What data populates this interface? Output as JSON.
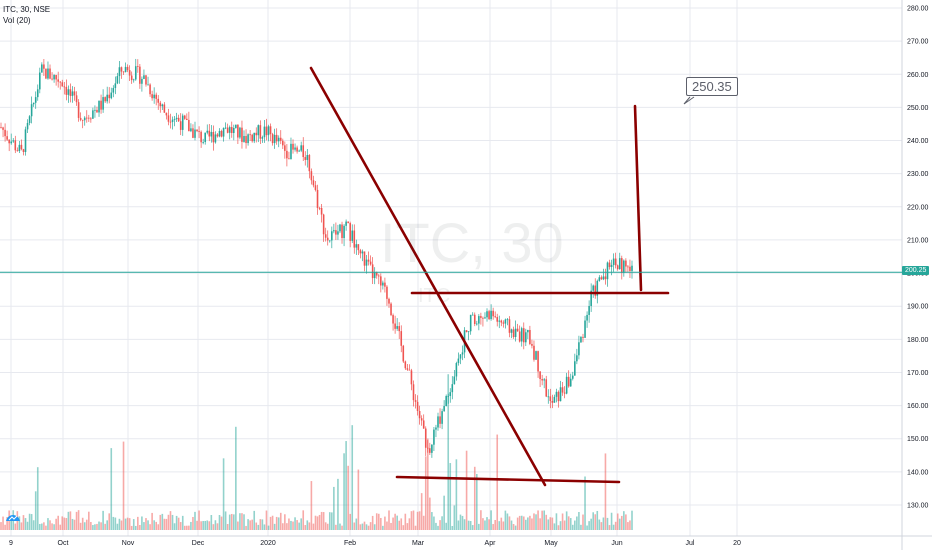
{
  "header": {
    "symbol_line": "ITC, 30, NSE",
    "volume_line": "Vol (20)"
  },
  "watermark": {
    "main": "ITC, 30",
    "sub": "ITC"
  },
  "colors": {
    "up": "#26a69a",
    "down": "#ef5350",
    "trendline": "#8b0000",
    "grid": "#e7e9ef",
    "price_line": "#26a69a",
    "axis_text": "#131722"
  },
  "icons": {
    "logo": "tradingview-logo-icon"
  },
  "chart_data": {
    "type": "candlestick",
    "y_axis": {
      "ticks": [
        130,
        140,
        150,
        160,
        170,
        180,
        190,
        200,
        210,
        220,
        230,
        240,
        250,
        260,
        270,
        280
      ],
      "range": [
        120,
        282
      ],
      "unit_suffix": ".00"
    },
    "x_axis": {
      "labels": [
        "9",
        "Oct",
        "Nov",
        "Dec",
        "2020",
        "Feb",
        "Mar",
        "Apr",
        "May",
        "Jun",
        "Jul",
        "20"
      ]
    },
    "last_price": "200.25",
    "annotation": {
      "text": "250.35",
      "value": 250.35
    },
    "price_path": [
      {
        "t": "9",
        "p": 244
      },
      {
        "t": "9-2",
        "p": 236
      },
      {
        "t": "Sep-end",
        "p": 261
      },
      {
        "t": "Oct",
        "p": 258
      },
      {
        "t": "Oct-mid",
        "p": 247
      },
      {
        "t": "Oct-late",
        "p": 251
      },
      {
        "t": "Nov",
        "p": 262
      },
      {
        "t": "Nov-mid",
        "p": 259
      },
      {
        "t": "Nov-late",
        "p": 249
      },
      {
        "t": "Dec",
        "p": 245
      },
      {
        "t": "Dec-mid",
        "p": 240
      },
      {
        "t": "Dec-late",
        "p": 244
      },
      {
        "t": "2020",
        "p": 241
      },
      {
        "t": "Jan-mid",
        "p": 243
      },
      {
        "t": "Jan-late",
        "p": 237
      },
      {
        "t": "Feb",
        "p": 236
      },
      {
        "t": "Feb-1",
        "p": 210
      },
      {
        "t": "Feb-mid",
        "p": 214
      },
      {
        "t": "Feb-late",
        "p": 202
      },
      {
        "t": "Mar",
        "p": 193
      },
      {
        "t": "Mar-mid",
        "p": 170
      },
      {
        "t": "Mar-low",
        "p": 146
      },
      {
        "t": "Mar-late",
        "p": 165
      },
      {
        "t": "Apr",
        "p": 185
      },
      {
        "t": "Apr-mid",
        "p": 188
      },
      {
        "t": "Apr-late",
        "p": 183
      },
      {
        "t": "May",
        "p": 180
      },
      {
        "t": "May-low",
        "p": 160
      },
      {
        "t": "May-late",
        "p": 168
      },
      {
        "t": "Jun",
        "p": 193
      },
      {
        "t": "Jun-high",
        "p": 204
      },
      {
        "t": "Jun-last",
        "p": 200.25
      }
    ],
    "trendlines": [
      {
        "from": [
          "Sep-1",
          262
        ],
        "to": [
          "May-end",
          137
        ]
      },
      {
        "from": [
          "Mar",
          193.5
        ],
        "to": [
          "Jun-2",
          193.5
        ]
      },
      {
        "from": [
          "Feb-mid",
          138
        ],
        "to": [
          "Jun",
          137
        ]
      },
      {
        "from": [
          "Jun",
          250
        ],
        "to": [
          "Jun-1",
          196
        ]
      }
    ]
  }
}
